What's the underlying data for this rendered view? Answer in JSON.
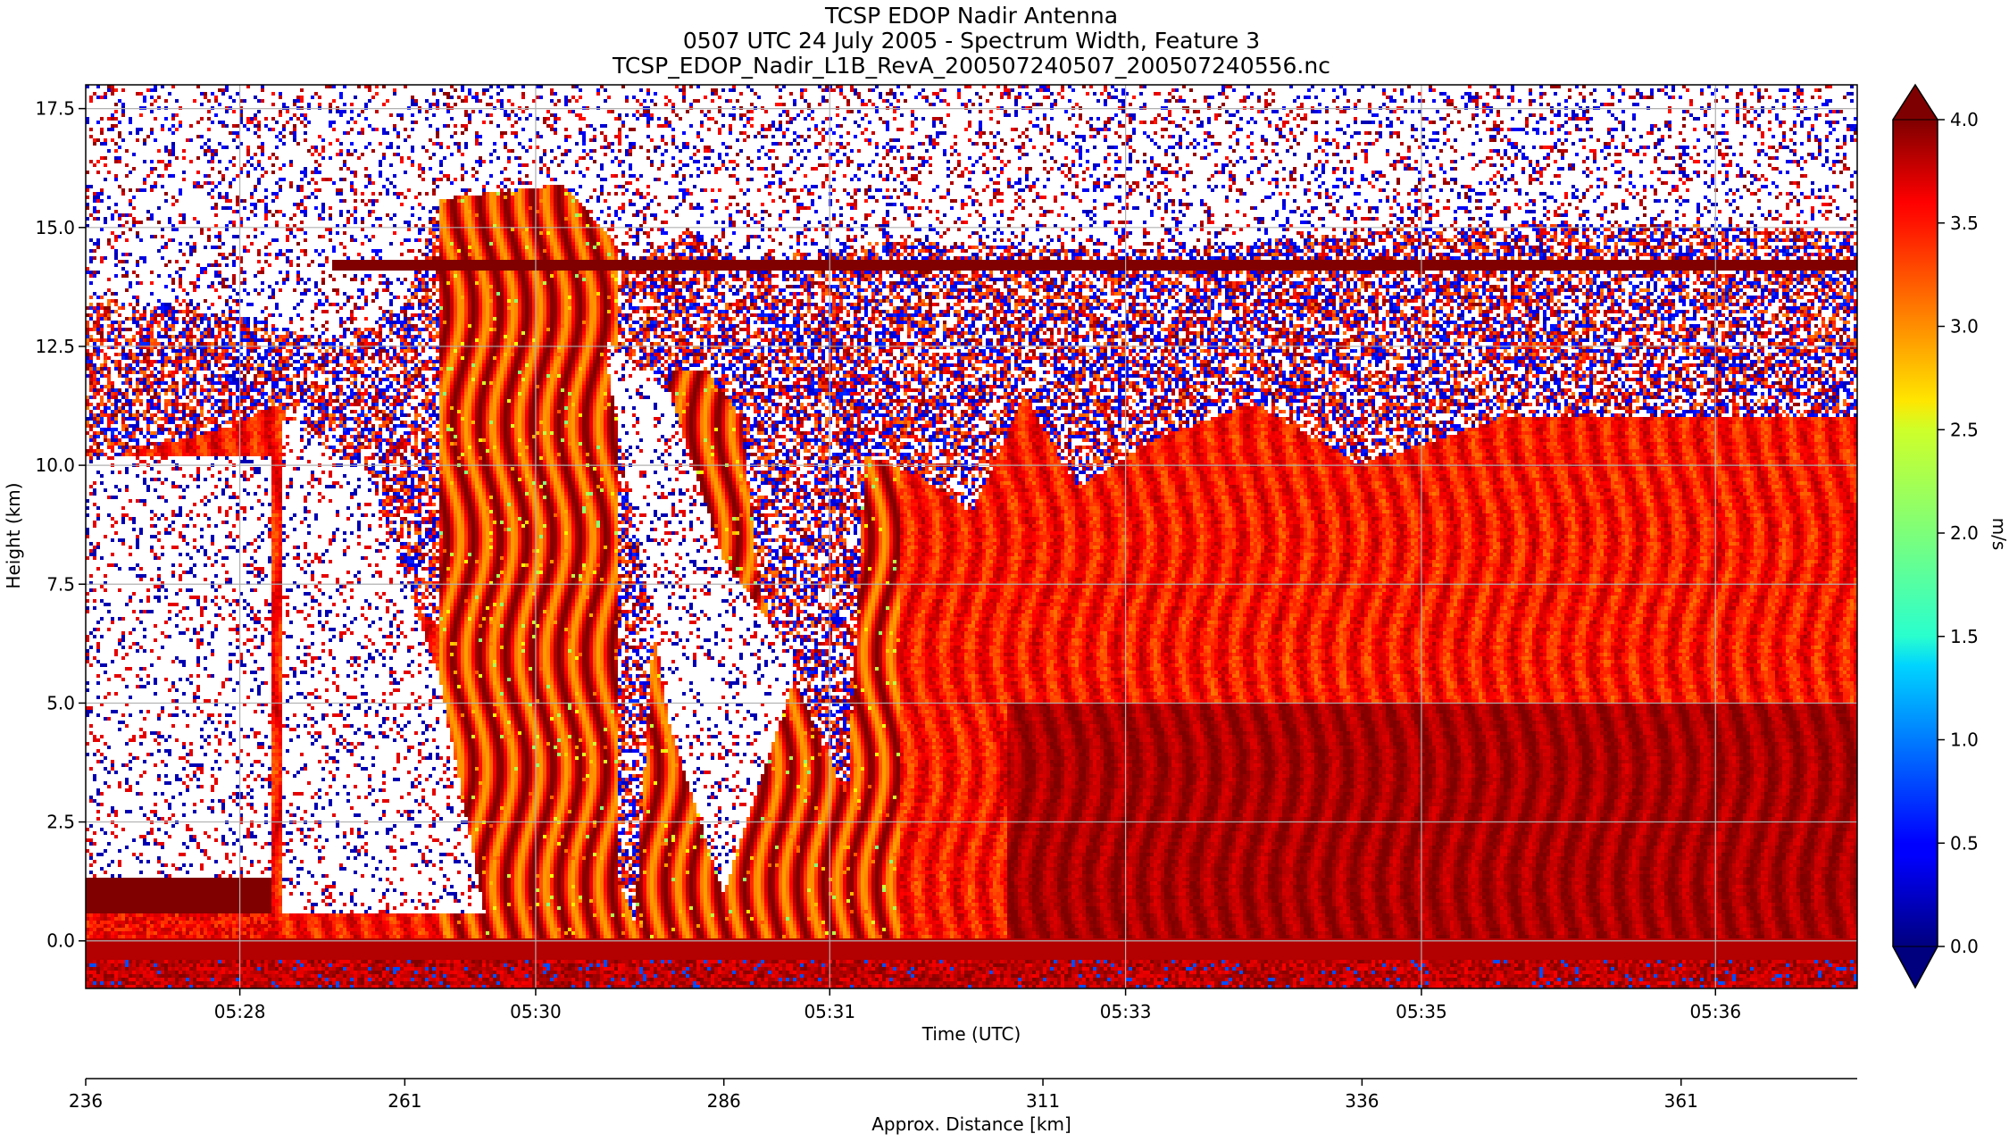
{
  "chart_data": {
    "type": "heatmap",
    "title": [
      "TCSP EDOP Nadir Antenna",
      "0507 UTC 24 July 2005 - Spectrum Width, Feature 3",
      "TCSP_EDOP_Nadir_L1B_RevA_200507240507_200507240556.nc"
    ],
    "xlabel": "Time (UTC)",
    "ylabel": "Height (km)",
    "secondary_xlabel": "Approx. Distance [km]",
    "x_ticks": [
      "05:28",
      "05:30",
      "05:31",
      "05:33",
      "05:35",
      "05:36"
    ],
    "x_tick_fraction": [
      0.087,
      0.254,
      0.42,
      0.587,
      0.754,
      0.92
    ],
    "y_ticks": [
      0.0,
      2.5,
      5.0,
      7.5,
      10.0,
      12.5,
      15.0,
      17.5
    ],
    "y_tick_labels": [
      "0.0",
      "2.5",
      "5.0",
      "7.5",
      "10.0",
      "12.5",
      "15.0",
      "17.5"
    ],
    "ylim": [
      -1.0,
      18.0
    ],
    "distance_ticks": [
      236,
      261,
      286,
      311,
      336,
      361
    ],
    "distance_tick_labels": [
      "236",
      "261",
      "286",
      "311",
      "336",
      "361"
    ],
    "distance_lim": [
      236,
      374.8
    ],
    "colorbar": {
      "label": "m/s",
      "min": 0.0,
      "max": 4.0,
      "extend": "both",
      "ticks": [
        0.0,
        0.5,
        1.0,
        1.5,
        2.0,
        2.5,
        3.0,
        3.5,
        4.0
      ],
      "tick_labels": [
        "0.0",
        "0.5",
        "1.0",
        "1.5",
        "2.0",
        "2.5",
        "3.0",
        "3.5",
        "4.0"
      ],
      "colormap": "jet"
    },
    "grid": true
  }
}
